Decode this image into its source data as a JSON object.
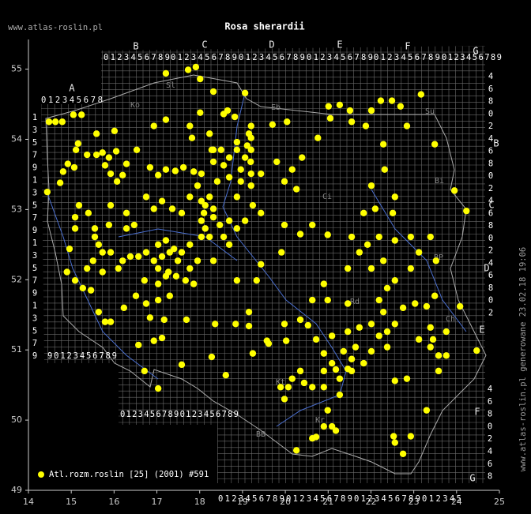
{
  "title": "Rosa sherardii",
  "watermark": "www.atlas-roslin.pl",
  "side_note": "www.atlas-roslin.pl generowane 23.02.18 19:06",
  "chart_data": {
    "type": "scatter",
    "color": "#ffff00",
    "legend": "Atl.rozm.roslin [25] (2001) #591",
    "xlim": [
      14,
      25
    ],
    "ylim": [
      49,
      55.4
    ],
    "xticks": [
      14,
      15,
      16,
      17,
      18,
      19,
      20,
      21,
      22,
      23,
      24,
      25
    ],
    "yticks": [
      49,
      50,
      51,
      52,
      53,
      54,
      55
    ],
    "x": [
      14.48,
      14.63,
      14.79,
      15.05,
      15.24,
      15.16,
      15.11,
      15.59,
      14.92,
      14.81,
      14.74,
      14.44,
      15.07,
      15.37,
      15.59,
      15.73,
      15.88,
      16.05,
      16.01,
      15.79,
      15.92,
      16.07,
      16.2,
      16.29,
      16.53,
      16.84,
      17.03,
      17.21,
      17.43,
      17.62,
      17.86,
      17.77,
      17.21,
      16.93,
      17.73,
      17.91,
      17.21,
      18.01,
      18.32,
      18.56,
      18.82,
      19.2,
      19.15,
      19.11,
      19.19,
      18.96,
      18.69,
      18.28,
      18.23,
      17.82,
      18.01,
      18.65,
      19.06,
      19.7,
      20.04,
      19.8,
      20.16,
      19.98,
      20.26,
      20.39,
      20.76,
      21.01,
      21.27,
      21.05,
      21.51,
      21.55,
      21.88,
      22.01,
      22.23,
      22.49,
      22.69,
      22.84,
      23.17,
      23.49,
      22.29,
      22.01,
      22.32,
      23.95,
      24.23,
      22.56,
      22.51,
      22.1,
      21.83,
      21.55,
      21.73,
      21.92,
      22.19,
      22.56,
      22.93,
      23.12,
      23.39,
      23.52,
      22.93,
      22.56,
      22.29,
      22.01,
      21.46,
      20.99,
      20.63,
      20.35,
      19.98,
      19.91,
      19.43,
      19.33,
      18.87,
      18.69,
      18.32,
      18.32,
      18.13,
      18.23,
      18.04,
      18.04,
      17.95,
      17.77,
      17.58,
      17.3,
      17.12,
      16.93,
      16.75,
      16.57,
      16.38,
      16.2,
      16.1,
      15.92,
      15.73,
      15.51,
      15.37,
      14.9,
      15.09,
      15.27,
      15.46,
      15.64,
      15.79,
      15.92,
      16.23,
      16.51,
      16.75,
      17.03,
      17.3,
      17.27,
      17.45,
      17.67,
      17.86,
      16.71,
      16.84,
      17.17,
      17.69,
      18.36,
      18.84,
      19.15,
      19.15,
      19.57,
      16.57,
      16.93,
      17.12,
      16.71,
      17.03,
      17.58,
      18.28,
      18.61,
      19.24,
      19.89,
      20.16,
      20.44,
      19.98,
      20.63,
      20.9,
      21.18,
      21.46,
      21.27,
      20.99,
      21.09,
      20.63,
      20.26,
      20.72,
      20.9,
      21.18,
      20.9,
      20.9,
      20.72,
      21.09,
      21.46,
      21.73,
      22.01,
      22.19,
      22.38,
      22.01,
      21.64,
      21.36,
      21.55,
      21.83,
      22.38,
      22.56,
      22.75,
      23.03,
      23.3,
      23.49,
      23.39,
      23.45,
      23.39,
      23.58,
      23.76,
      23.58,
      23.12,
      23.76,
      24.08,
      24.47,
      22.56,
      22.84,
      23.3,
      22.53,
      22.56,
      22.93,
      22.75,
      22.19,
      22.38,
      22.29,
      20.9,
      20.99,
      20.63,
      20.35,
      19.98,
      20.02,
      19.61,
      20.53,
      21.46,
      21.09,
      21.27,
      21.55,
      20.35,
      20.07,
      15.55,
      15.4,
      15.18,
      15.09,
      14.96,
      15.09,
      15.92,
      16.29,
      16.47,
      16.29,
      15.88,
      16.75,
      16.93,
      17.12,
      17.36,
      17.58,
      17.77,
      18.04,
      18.1,
      18.32,
      18.47,
      18.56,
      18.69,
      18.87,
      19.06,
      19.24,
      19.43,
      18.87,
      18.96,
      19.43,
      19.06,
      18.87,
      18.87,
      18.04,
      17.95,
      18.41,
      18.69,
      18.56,
      18.32,
      18.32,
      18.5,
      15.55,
      15.64,
      15.73,
      17.03,
      17.21,
      17.4,
      17.49,
      17.03,
      17.21,
      17.03,
      17.77,
      18.13,
      18.23,
      19.2,
      19.2,
      19.2,
      19.2
    ],
    "y": [
      54.25,
      54.25,
      54.25,
      54.35,
      54.35,
      53.94,
      53.85,
      54.08,
      53.65,
      53.54,
      53.38,
      53.25,
      53.6,
      53.78,
      53.78,
      53.81,
      53.74,
      53.83,
      54.12,
      53.63,
      53.51,
      53.4,
      53.49,
      53.65,
      53.85,
      53.6,
      53.49,
      53.57,
      53.55,
      53.6,
      53.54,
      54.19,
      54.28,
      54.19,
      54.99,
      55.03,
      54.94,
      54.86,
      54.68,
      54.36,
      54.32,
      54.19,
      54.08,
      53.91,
      53.68,
      53.57,
      53.74,
      53.85,
      54.08,
      54.02,
      54.38,
      54.41,
      54.66,
      54.21,
      54.25,
      53.68,
      53.57,
      53.4,
      53.29,
      53.74,
      54.02,
      54.47,
      54.49,
      54.3,
      54.41,
      54.25,
      54.19,
      54.41,
      54.55,
      54.55,
      54.47,
      54.19,
      54.64,
      53.93,
      53.93,
      53.34,
      53.57,
      53.27,
      52.98,
      53.18,
      52.95,
      53.01,
      52.95,
      52.61,
      52.39,
      52.5,
      52.61,
      52.56,
      52.61,
      52.39,
      52.61,
      52.27,
      52.16,
      51.99,
      52.27,
      52.16,
      52.16,
      52.64,
      52.78,
      52.65,
      52.78,
      52.39,
      52.22,
      51.99,
      51.99,
      52.5,
      52.27,
      52.89,
      53.06,
      53.18,
      52.84,
      52.61,
      52.27,
      52.16,
      52.39,
      52.39,
      52.33,
      52.27,
      52.39,
      52.33,
      52.33,
      52.27,
      52.16,
      52.39,
      52.11,
      52.27,
      52.16,
      52.11,
      51.99,
      51.88,
      51.85,
      51.54,
      51.4,
      51.4,
      51.6,
      51.77,
      51.66,
      51.71,
      51.77,
      52.11,
      52.05,
      51.99,
      51.94,
      51.99,
      51.46,
      51.43,
      51.43,
      51.37,
      51.37,
      51.34,
      51.54,
      51.13,
      51.07,
      51.13,
      51.17,
      50.7,
      50.45,
      50.79,
      50.9,
      50.64,
      50.95,
      50.47,
      50.59,
      50.53,
      50.3,
      50.47,
      50.47,
      50.72,
      50.73,
      50.36,
      50.14,
      49.91,
      49.74,
      49.57,
      49.76,
      49.91,
      49.85,
      50.7,
      50.95,
      51.15,
      51.2,
      51.26,
      51.32,
      51.37,
      51.2,
      51.04,
      50.98,
      51.04,
      50.98,
      50.87,
      50.81,
      51.26,
      51.37,
      51.6,
      51.66,
      51.62,
      51.77,
      51.32,
      51.15,
      51.04,
      50.92,
      50.92,
      50.7,
      51.15,
      51.26,
      51.62,
      50.99,
      50.56,
      50.59,
      50.14,
      49.77,
      49.68,
      49.77,
      49.52,
      51.71,
      51.88,
      51.54,
      51.94,
      51.71,
      51.71,
      51.43,
      51.37,
      51.13,
      51.09,
      51.35,
      51.66,
      50.81,
      50.59,
      50.7,
      50.7,
      50.47,
      52.73,
      52.95,
      53.06,
      52.73,
      52.44,
      52.89,
      53.06,
      52.95,
      52.78,
      52.73,
      52.78,
      53.18,
      53.01,
      53.12,
      53.01,
      52.95,
      53.18,
      53.12,
      52.95,
      53.01,
      52.78,
      52.61,
      52.84,
      52.73,
      52.84,
      53.06,
      52.95,
      53.18,
      53.4,
      53.51,
      53.74,
      53.85,
      53.96,
      53.51,
      53.34,
      53.4,
      53.46,
      53.63,
      53.68,
      53.85,
      53.85,
      52.61,
      52.5,
      52.39,
      52.5,
      52.56,
      52.44,
      52.27,
      52.16,
      52.05,
      51.94,
      52.5,
      52.73,
      52.61,
      54.02,
      53.85,
      53.51,
      53.34
    ]
  },
  "grid_labels": {
    "letters": [
      "A",
      "B",
      "C",
      "D",
      "E",
      "F",
      "G",
      "B",
      "C",
      "D",
      "E",
      "F",
      "G"
    ],
    "strips": [
      "0123456789",
      "0123456789",
      "0123456789",
      "0123456789",
      "0123456789",
      "0123456789",
      "012345678",
      "90123456789",
      "01234567890123456789",
      "0123456789",
      "0123456789",
      "0123456789",
      "012345"
    ],
    "columns": [
      "13579135791357913579",
      "46802468024680246802",
      "46802468"
    ]
  },
  "regions": [
    "Sl",
    "Ko",
    "Eb",
    "Su",
    "Bi",
    "Ci",
    "BP",
    "Rd",
    "Ch",
    "Kr",
    "Kt",
    "BB"
  ]
}
